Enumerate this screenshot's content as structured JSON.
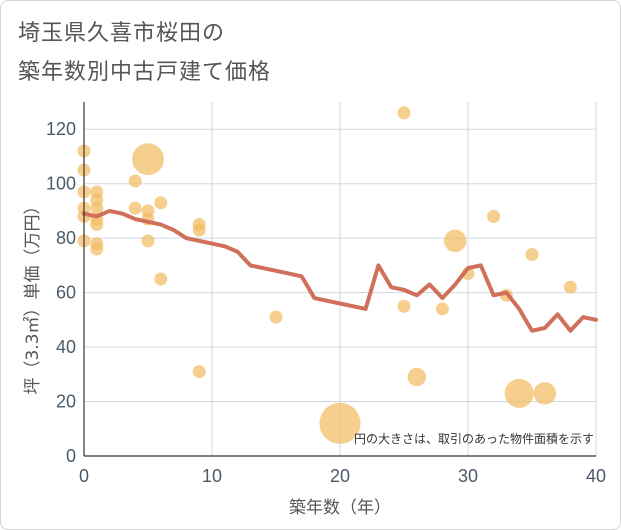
{
  "title": {
    "line1": "埼玉県久喜市桜田の",
    "line2": "築年数別中古戸建て価格"
  },
  "chart_data": {
    "type": "scatter",
    "xlabel": "築年数（年）",
    "ylabel": "坪（3.3㎡）単価（万円）",
    "xlim": [
      0,
      40
    ],
    "ylim": [
      0,
      130
    ],
    "xticks": [
      0,
      10,
      20,
      30,
      40
    ],
    "yticks": [
      0,
      20,
      40,
      60,
      80,
      100,
      120
    ],
    "grid": true,
    "annotation": "円の大きさは、取引のあった物件面積を示す",
    "colors": {
      "bubble": "#f2bd62",
      "line": "#d0705a",
      "grid": "#cfd8e0",
      "axis": "#333333"
    },
    "series": [
      {
        "kind": "bubble",
        "points": [
          {
            "x": 0,
            "y": 112,
            "size": 1
          },
          {
            "x": 0,
            "y": 105,
            "size": 1
          },
          {
            "x": 0,
            "y": 97,
            "size": 1
          },
          {
            "x": 0,
            "y": 91,
            "size": 1
          },
          {
            "x": 0,
            "y": 88,
            "size": 1
          },
          {
            "x": 0,
            "y": 79,
            "size": 1
          },
          {
            "x": 1,
            "y": 97,
            "size": 1
          },
          {
            "x": 1,
            "y": 94,
            "size": 1
          },
          {
            "x": 1,
            "y": 91,
            "size": 1
          },
          {
            "x": 1,
            "y": 87,
            "size": 1
          },
          {
            "x": 1,
            "y": 85,
            "size": 1
          },
          {
            "x": 1,
            "y": 78,
            "size": 1
          },
          {
            "x": 1,
            "y": 76,
            "size": 1
          },
          {
            "x": 4,
            "y": 101,
            "size": 1
          },
          {
            "x": 4,
            "y": 91,
            "size": 1
          },
          {
            "x": 5,
            "y": 109,
            "size": 6
          },
          {
            "x": 5,
            "y": 90,
            "size": 1
          },
          {
            "x": 5,
            "y": 87,
            "size": 1
          },
          {
            "x": 5,
            "y": 79,
            "size": 1
          },
          {
            "x": 6,
            "y": 93,
            "size": 1
          },
          {
            "x": 6,
            "y": 65,
            "size": 1
          },
          {
            "x": 9,
            "y": 85,
            "size": 1
          },
          {
            "x": 9,
            "y": 83,
            "size": 1
          },
          {
            "x": 9,
            "y": 31,
            "size": 1
          },
          {
            "x": 15,
            "y": 51,
            "size": 1
          },
          {
            "x": 20,
            "y": 12,
            "size": 10
          },
          {
            "x": 25,
            "y": 126,
            "size": 1
          },
          {
            "x": 25,
            "y": 55,
            "size": 1
          },
          {
            "x": 26,
            "y": 29,
            "size": 2
          },
          {
            "x": 28,
            "y": 54,
            "size": 1
          },
          {
            "x": 29,
            "y": 79,
            "size": 3
          },
          {
            "x": 30,
            "y": 67,
            "size": 1
          },
          {
            "x": 32,
            "y": 88,
            "size": 1
          },
          {
            "x": 33,
            "y": 59,
            "size": 1
          },
          {
            "x": 34,
            "y": 23,
            "size": 5
          },
          {
            "x": 35,
            "y": 74,
            "size": 1
          },
          {
            "x": 36,
            "y": 23,
            "size": 3
          },
          {
            "x": 38,
            "y": 62,
            "size": 1
          }
        ]
      },
      {
        "kind": "line",
        "x": [
          0,
          1,
          2,
          3,
          4,
          5,
          6,
          7,
          8,
          9,
          10,
          11,
          12,
          13,
          14,
          15,
          16,
          17,
          18,
          19,
          20,
          21,
          22,
          23,
          24,
          25,
          26,
          27,
          28,
          29,
          30,
          31,
          32,
          33,
          34,
          35,
          36,
          37,
          38,
          39,
          40
        ],
        "y": [
          89,
          88,
          90,
          89,
          87,
          86,
          85,
          83,
          80,
          79,
          78,
          77,
          75,
          70,
          69,
          68,
          67,
          66,
          58,
          57,
          56,
          55,
          54,
          70,
          62,
          61,
          59,
          63,
          58,
          63,
          69,
          70,
          59,
          60,
          54,
          46,
          47,
          52,
          46,
          51,
          50
        ]
      }
    ]
  }
}
